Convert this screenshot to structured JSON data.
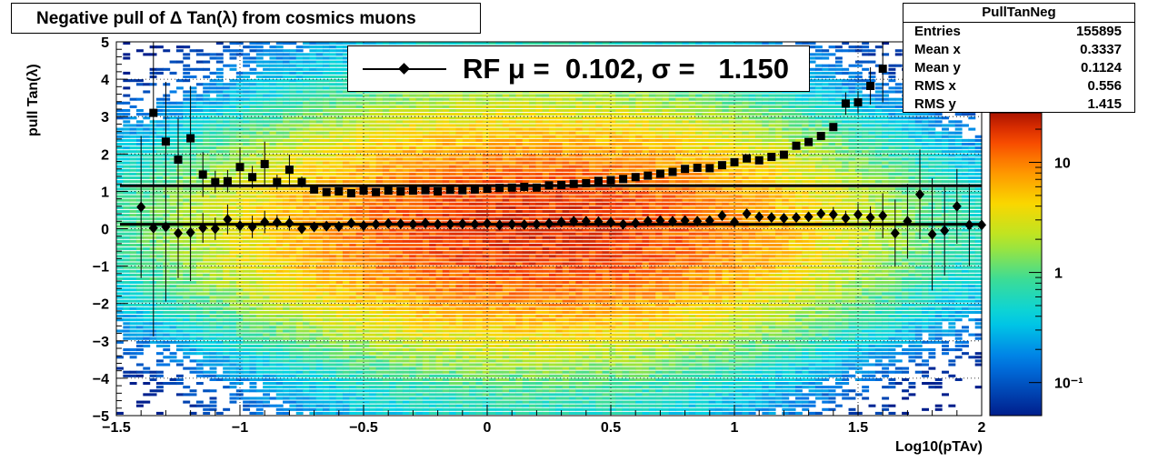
{
  "title": "Negative pull of Δ Tan(λ) from cosmics muons",
  "stats": {
    "name": "PullTanNeg",
    "rows": [
      {
        "label": "Entries",
        "value": "155895"
      },
      {
        "label": "Mean x",
        "value": "0.3337"
      },
      {
        "label": "Mean y",
        "value": "0.1124"
      },
      {
        "label": "RMS x",
        "value": "0.556"
      },
      {
        "label": "RMS y",
        "value": "1.415"
      }
    ]
  },
  "legend": {
    "text": "RF μ =  0.102, σ =   1.150",
    "marker": "diamond"
  },
  "axes": {
    "xlabel": "Log10(pTAv)",
    "ylabel": "pull Tan(λ)"
  },
  "colors": {
    "background": "#ffffff",
    "markers": "#000000"
  },
  "chart_data": {
    "type": "heatmap",
    "title": "Negative pull of Δ Tan(λ) from cosmics muons",
    "xlabel": "Log10(pTAv)",
    "ylabel": "pull Tan(λ)",
    "xlim": [
      -1.5,
      2
    ],
    "ylim": [
      -5,
      5
    ],
    "x_ticks": [
      "−1.5",
      "−1",
      "−0.5",
      "0",
      "0.5",
      "1",
      "1.5",
      "2"
    ],
    "y_ticks": [
      "−5",
      "−4",
      "−3",
      "−2",
      "−1",
      "0",
      "1",
      "2",
      "3",
      "4",
      "5"
    ],
    "grid": true,
    "z_scale": "log",
    "colorbar_ticks": [
      "10",
      "1",
      "10⁻¹"
    ],
    "colorbar_values": [
      10,
      1,
      0.1
    ],
    "density": {
      "x_center": 0.2,
      "y_center": 0.0,
      "rms_x": 0.556,
      "rms_y": 1.415
    },
    "fit_lines": [
      1.15,
      0.12
    ],
    "series": [
      {
        "name": "sigma",
        "marker": "square",
        "x": [
          -1.35,
          -1.3,
          -1.25,
          -1.2,
          -1.15,
          -1.1,
          -1.05,
          -1.0,
          -0.95,
          -0.9,
          -0.85,
          -0.8,
          -0.75,
          -0.7,
          -0.65,
          -0.6,
          -0.55,
          -0.5,
          -0.45,
          -0.4,
          -0.35,
          -0.3,
          -0.25,
          -0.2,
          -0.15,
          -0.1,
          -0.05,
          0.0,
          0.05,
          0.1,
          0.15,
          0.2,
          0.25,
          0.3,
          0.35,
          0.4,
          0.45,
          0.5,
          0.55,
          0.6,
          0.65,
          0.7,
          0.75,
          0.8,
          0.85,
          0.9,
          0.95,
          1.0,
          1.05,
          1.1,
          1.15,
          1.2,
          1.25,
          1.3,
          1.35,
          1.4,
          1.45,
          1.5,
          1.55,
          1.6
        ],
        "y": [
          3.1,
          2.33,
          1.85,
          2.42,
          1.45,
          1.25,
          1.27,
          1.65,
          1.38,
          1.73,
          1.25,
          1.58,
          1.25,
          1.05,
          0.98,
          1.0,
          0.95,
          1.02,
          0.98,
          1.02,
          1.0,
          1.02,
          1.03,
          1.0,
          1.04,
          1.03,
          1.05,
          1.07,
          1.09,
          1.1,
          1.12,
          1.1,
          1.16,
          1.17,
          1.2,
          1.22,
          1.28,
          1.3,
          1.33,
          1.38,
          1.42,
          1.47,
          1.52,
          1.6,
          1.63,
          1.62,
          1.7,
          1.78,
          1.88,
          1.83,
          1.92,
          1.98,
          2.22,
          2.32,
          2.48,
          2.72,
          3.35,
          3.38,
          3.82,
          4.28
        ],
        "yerr": [
          2.2,
          1.6,
          1.1,
          1.4,
          0.6,
          0.3,
          0.3,
          0.5,
          0.3,
          0.6,
          0.2,
          0.4,
          0.15,
          0.1,
          0.05,
          0.05,
          0.05,
          0.05,
          0.05,
          0.05,
          0.05,
          0.05,
          0.05,
          0.05,
          0.05,
          0.05,
          0.05,
          0.05,
          0.05,
          0.05,
          0.05,
          0.05,
          0.05,
          0.05,
          0.05,
          0.05,
          0.05,
          0.05,
          0.05,
          0.05,
          0.05,
          0.05,
          0.05,
          0.05,
          0.05,
          0.05,
          0.05,
          0.05,
          0.05,
          0.05,
          0.05,
          0.05,
          0.05,
          0.05,
          0.1,
          0.1,
          0.3,
          0.3,
          0.5,
          0.9
        ]
      },
      {
        "name": "mean",
        "marker": "diamond",
        "x": [
          -1.4,
          -1.35,
          -1.3,
          -1.25,
          -1.2,
          -1.15,
          -1.1,
          -1.05,
          -1.0,
          -0.95,
          -0.9,
          -0.85,
          -0.8,
          -0.75,
          -0.7,
          -0.65,
          -0.6,
          -0.55,
          -0.5,
          -0.45,
          -0.4,
          -0.35,
          -0.3,
          -0.25,
          -0.2,
          -0.15,
          -0.1,
          -0.05,
          0.0,
          0.05,
          0.1,
          0.15,
          0.2,
          0.25,
          0.3,
          0.35,
          0.4,
          0.45,
          0.5,
          0.55,
          0.6,
          0.65,
          0.7,
          0.75,
          0.8,
          0.85,
          0.9,
          0.95,
          1.0,
          1.05,
          1.1,
          1.15,
          1.2,
          1.25,
          1.3,
          1.35,
          1.4,
          1.45,
          1.5,
          1.55,
          1.6,
          1.65,
          1.7,
          1.75,
          1.8,
          1.85,
          1.9,
          1.95,
          2.0
        ],
        "y": [
          0.58,
          0.02,
          0.05,
          -0.12,
          -0.1,
          0.02,
          0.0,
          0.25,
          0.08,
          0.05,
          0.18,
          0.17,
          0.15,
          0.0,
          0.05,
          0.07,
          0.06,
          0.15,
          0.08,
          0.12,
          0.14,
          0.13,
          0.12,
          0.15,
          0.12,
          0.12,
          0.13,
          0.12,
          0.14,
          0.1,
          0.12,
          0.11,
          0.12,
          0.14,
          0.18,
          0.2,
          0.2,
          0.19,
          0.17,
          0.12,
          0.15,
          0.2,
          0.22,
          0.2,
          0.22,
          0.2,
          0.22,
          0.35,
          0.18,
          0.4,
          0.32,
          0.3,
          0.28,
          0.3,
          0.32,
          0.4,
          0.38,
          0.28,
          0.38,
          0.3,
          0.35,
          -0.12,
          0.2,
          0.92,
          -0.15,
          -0.05,
          0.6,
          0.1,
          0.1
        ],
        "yerr": [
          1.9,
          2.9,
          2.0,
          1.2,
          1.3,
          0.4,
          0.3,
          0.4,
          0.2,
          0.3,
          0.3,
          0.2,
          0.2,
          0.1,
          0.05,
          0.05,
          0.05,
          0.05,
          0.05,
          0.05,
          0.05,
          0.05,
          0.05,
          0.05,
          0.05,
          0.05,
          0.05,
          0.05,
          0.05,
          0.05,
          0.05,
          0.05,
          0.05,
          0.05,
          0.05,
          0.05,
          0.05,
          0.05,
          0.05,
          0.05,
          0.05,
          0.05,
          0.05,
          0.05,
          0.05,
          0.05,
          0.05,
          0.05,
          0.05,
          0.05,
          0.05,
          0.05,
          0.05,
          0.05,
          0.1,
          0.1,
          0.2,
          0.2,
          0.3,
          0.3,
          0.6,
          0.9,
          1.0,
          1.2,
          1.5,
          1.2,
          1.0,
          1.1,
          1.0
        ]
      }
    ]
  }
}
